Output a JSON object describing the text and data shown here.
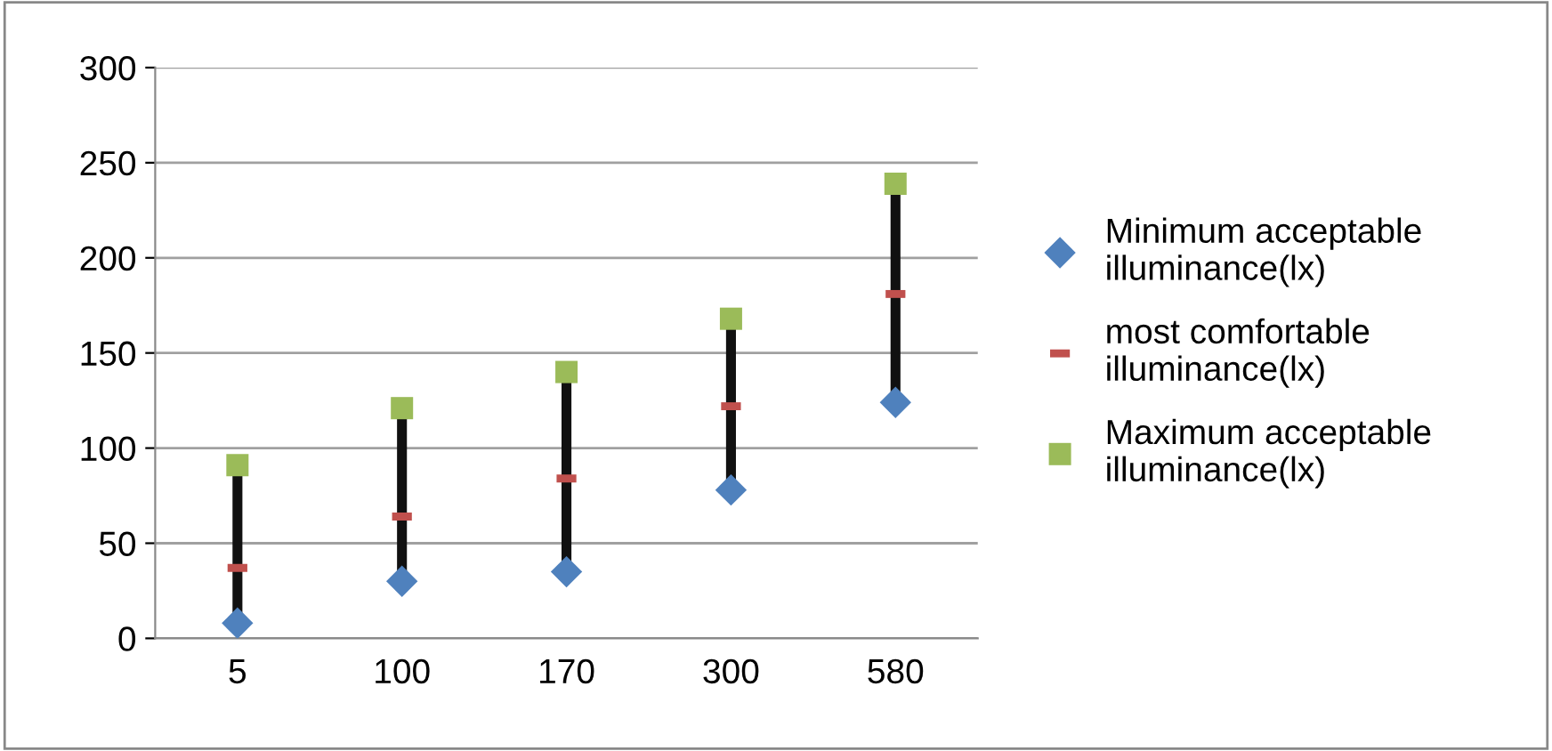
{
  "chart_data": {
    "type": "scatter",
    "categories": [
      "5",
      "100",
      "170",
      "300",
      "580"
    ],
    "series": [
      {
        "name": "Minimum acceptable illuminance(lx)",
        "color": "#4f81bd",
        "marker": "diamond",
        "values": [
          8,
          30,
          35,
          78,
          124
        ]
      },
      {
        "name": "most comfortable illuminance(lx)",
        "color": "#c0504d",
        "values": [
          37,
          64,
          84,
          122,
          181
        ]
      },
      {
        "name": "Maximum acceptable illuminance(lx)",
        "color": "#9bbb59",
        "marker": "square",
        "values": [
          91,
          121,
          140,
          168,
          239
        ]
      }
    ],
    "ylim": [
      0,
      300
    ],
    "yticks": [
      0,
      50,
      100,
      150,
      200,
      250,
      300
    ],
    "grid": "y",
    "legend": "right"
  }
}
